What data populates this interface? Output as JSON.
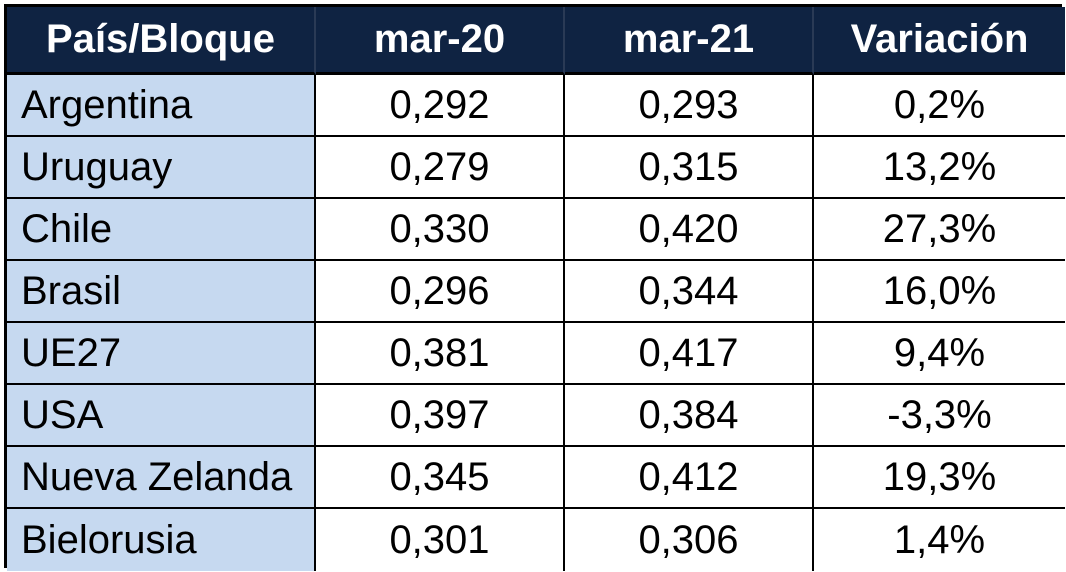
{
  "headers": [
    "País/Bloque",
    "mar-20",
    "mar-21",
    "Variación"
  ],
  "rows": [
    {
      "country": "Argentina",
      "mar20": "0,292",
      "mar21": "0,293",
      "variation": "0,2%"
    },
    {
      "country": "Uruguay",
      "mar20": "0,279",
      "mar21": "0,315",
      "variation": "13,2%"
    },
    {
      "country": "Chile",
      "mar20": "0,330",
      "mar21": "0,420",
      "variation": "27,3%"
    },
    {
      "country": "Brasil",
      "mar20": "0,296",
      "mar21": "0,344",
      "variation": "16,0%"
    },
    {
      "country": "UE27",
      "mar20": "0,381",
      "mar21": "0,417",
      "variation": "9,4%"
    },
    {
      "country": "USA",
      "mar20": "0,397",
      "mar21": "0,384",
      "variation": "-3,3%"
    },
    {
      "country": "Nueva Zelanda",
      "mar20": "0,345",
      "mar21": "0,412",
      "variation": "19,3%"
    },
    {
      "country": "Bielorusia",
      "mar20": "0,301",
      "mar21": "0,306",
      "variation": "1,4%"
    }
  ],
  "colors": {
    "header_bg": "#0f2342",
    "header_text": "#ffffff",
    "country_bg": "#c6d9f0",
    "border": "#000000"
  }
}
